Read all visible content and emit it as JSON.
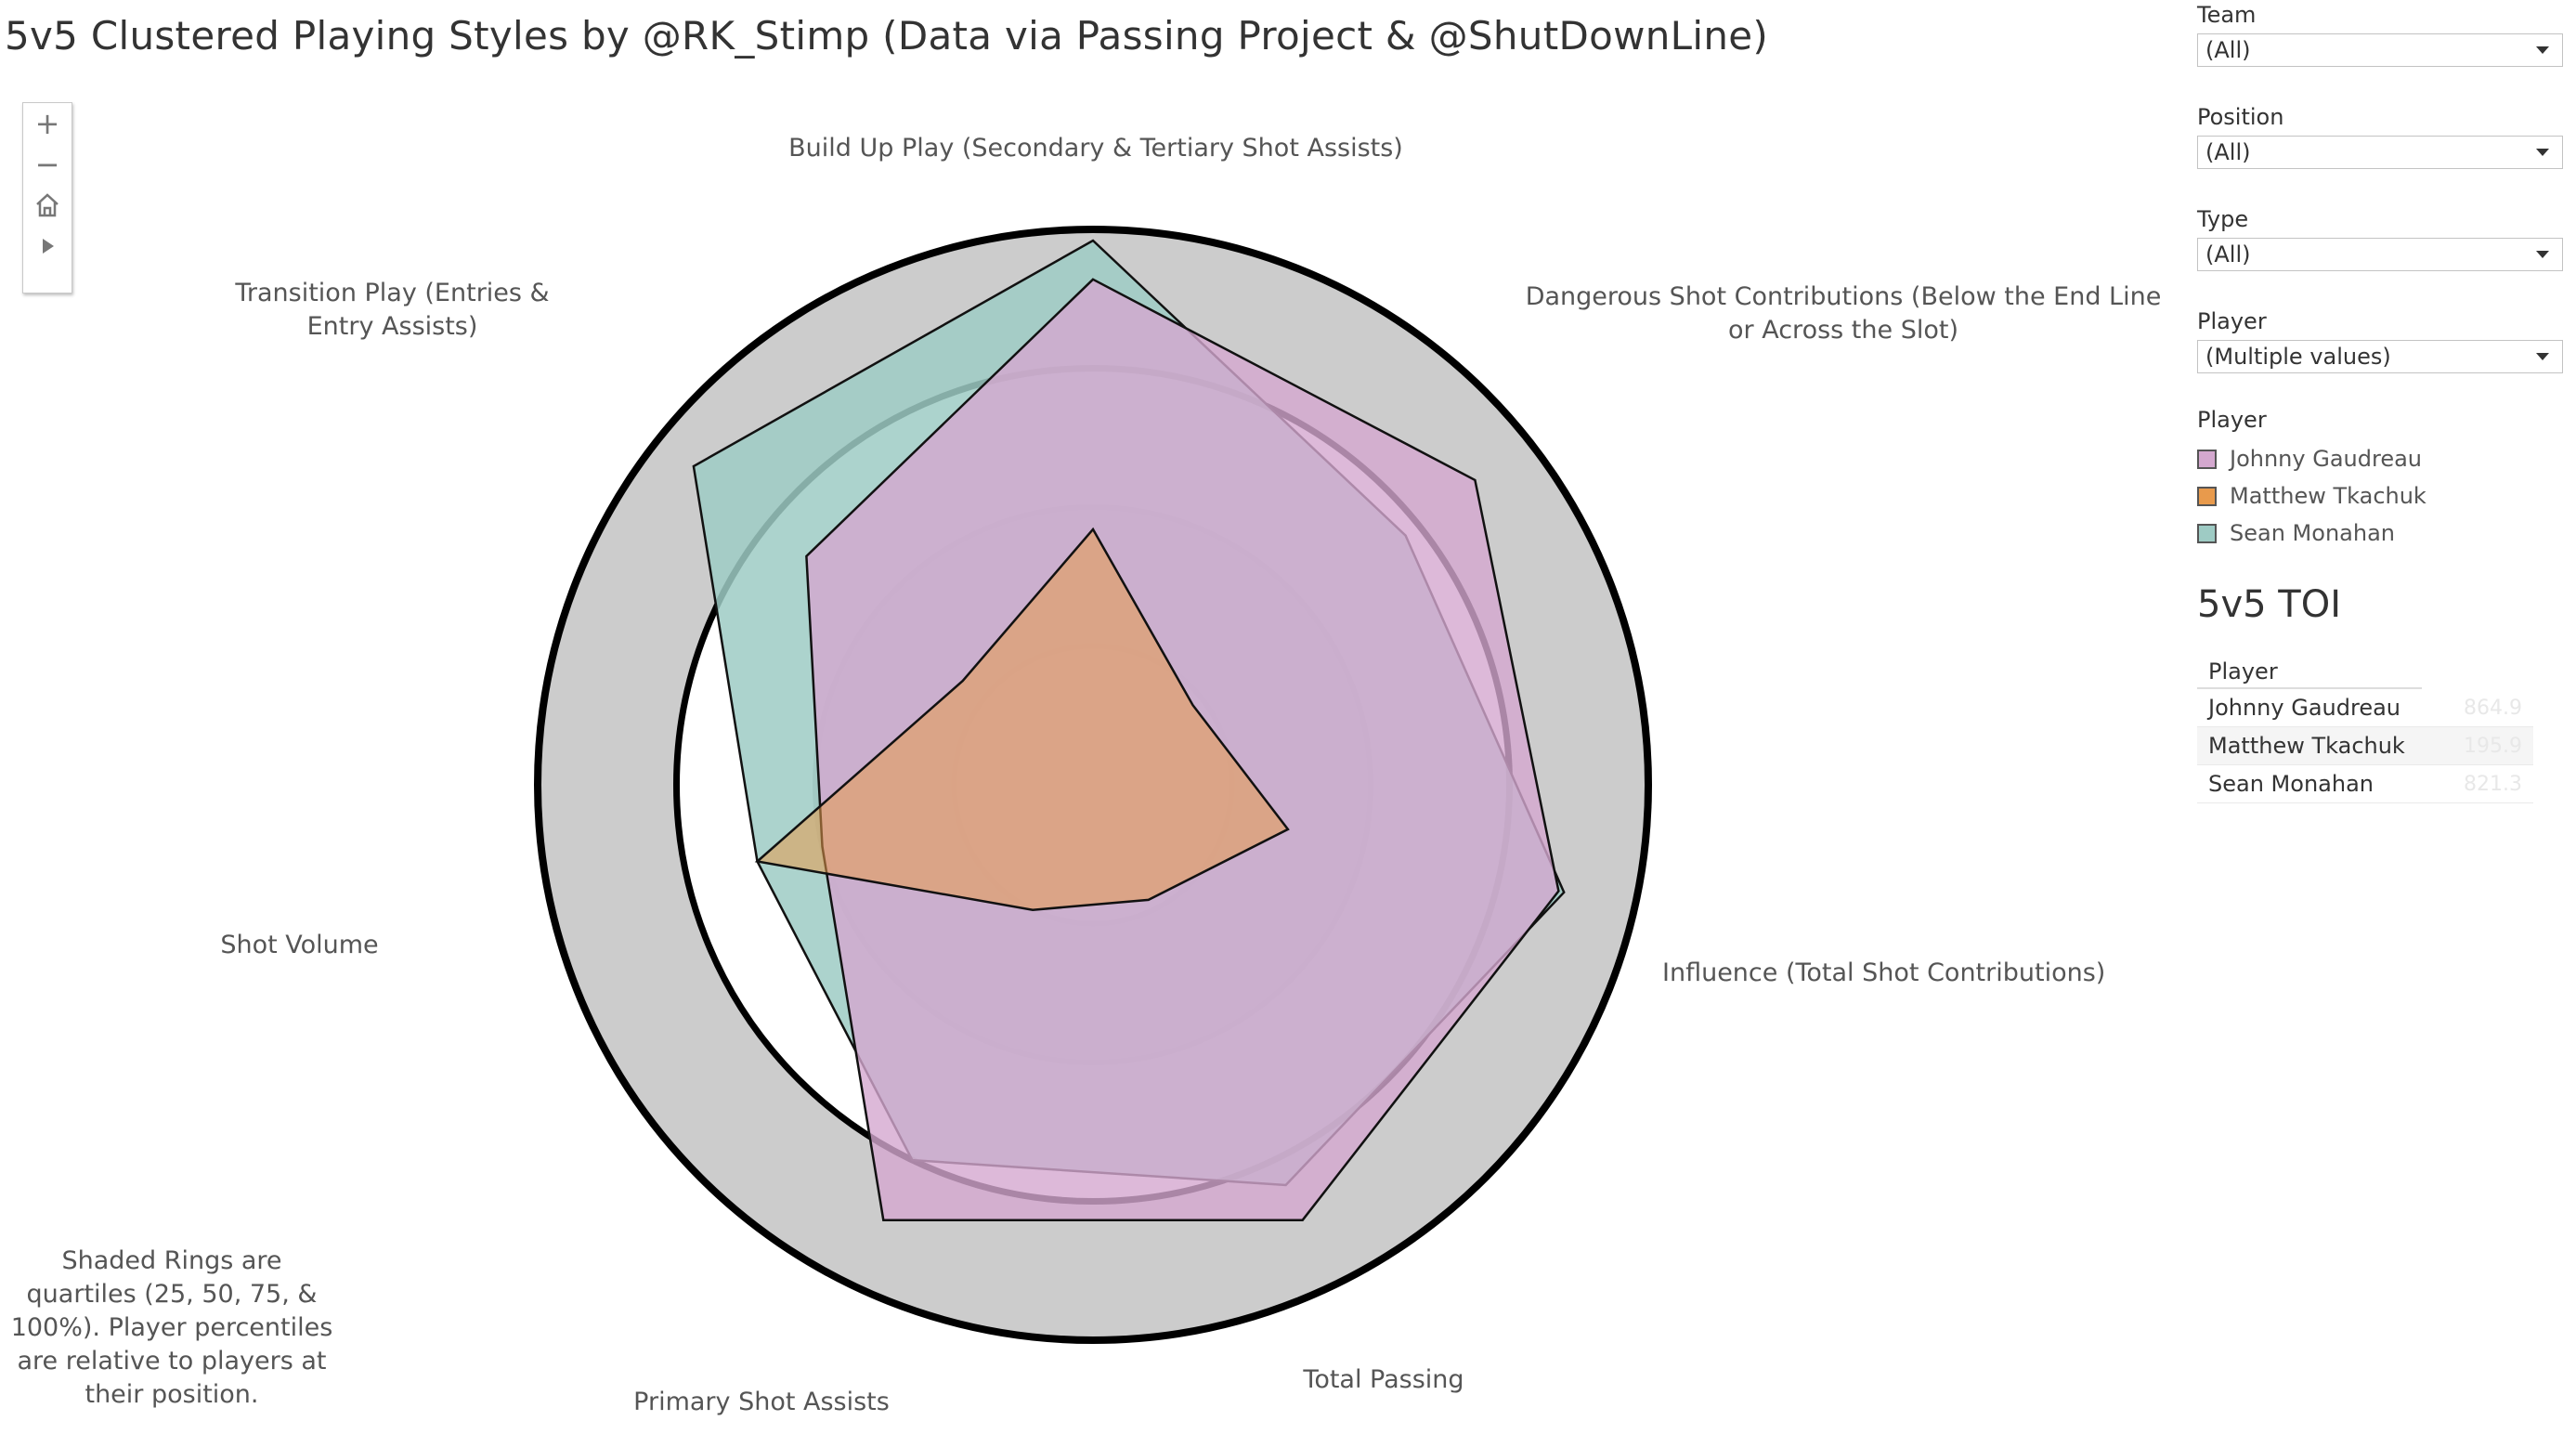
{
  "title": "5v5 Clustered Playing Styles by @RK_Stimp (Data via Passing Project & @ShutDownLine)",
  "toolbar": {
    "zoom_in": "+",
    "zoom_out": "−"
  },
  "note": "Shaded Rings are quartiles (25, 50, 75, & 100%). Player percentiles are relative to players at their position.",
  "filters": [
    {
      "label": "Team",
      "value": "(All)"
    },
    {
      "label": "Position",
      "value": "(All)"
    },
    {
      "label": "Type",
      "value": "(All)"
    },
    {
      "label": "Player",
      "value": "(Multiple values)"
    }
  ],
  "legend": {
    "title": "Player",
    "items": [
      {
        "name": "Johnny Gaudreau",
        "color": "#d4a8cf"
      },
      {
        "name": "Matthew Tkachuk",
        "color": "#e89a4c"
      },
      {
        "name": "Sean Monahan",
        "color": "#9ecbc4"
      }
    ]
  },
  "toi": {
    "title": "5v5 TOI",
    "header": "Player",
    "rows": [
      {
        "player": "Johnny Gaudreau",
        "value": "864.9"
      },
      {
        "player": "Matthew Tkachuk",
        "value": "195.9"
      },
      {
        "player": "Sean Monahan",
        "value": "821.3"
      }
    ]
  },
  "chart_data": {
    "type": "radar",
    "axes": [
      "Build Up Play (Secondary & Tertiary Shot Assists)",
      "Dangerous Shot Contributions (Below the End Line or Across the Slot)",
      "Influence (Total Shot Contributions)",
      "Total Passing",
      "Primary Shot Assists",
      "Shot Volume",
      "Transition Play (Entries & Entry Assists)"
    ],
    "rmax": 100,
    "rings": [
      25,
      50,
      75,
      100
    ],
    "series": [
      {
        "name": "Sean Monahan",
        "color": "#9ecbc4",
        "values": [
          98,
          72,
          87,
          80,
          75,
          62,
          92
        ]
      },
      {
        "name": "Johnny Gaudreau",
        "color": "#d4a8cf",
        "values": [
          91,
          88,
          86,
          87,
          87,
          50,
          66
        ]
      },
      {
        "name": "Matthew Tkachuk",
        "color": "#e89a4c",
        "values": [
          46,
          23,
          36,
          23,
          25,
          62,
          30
        ]
      }
    ]
  }
}
